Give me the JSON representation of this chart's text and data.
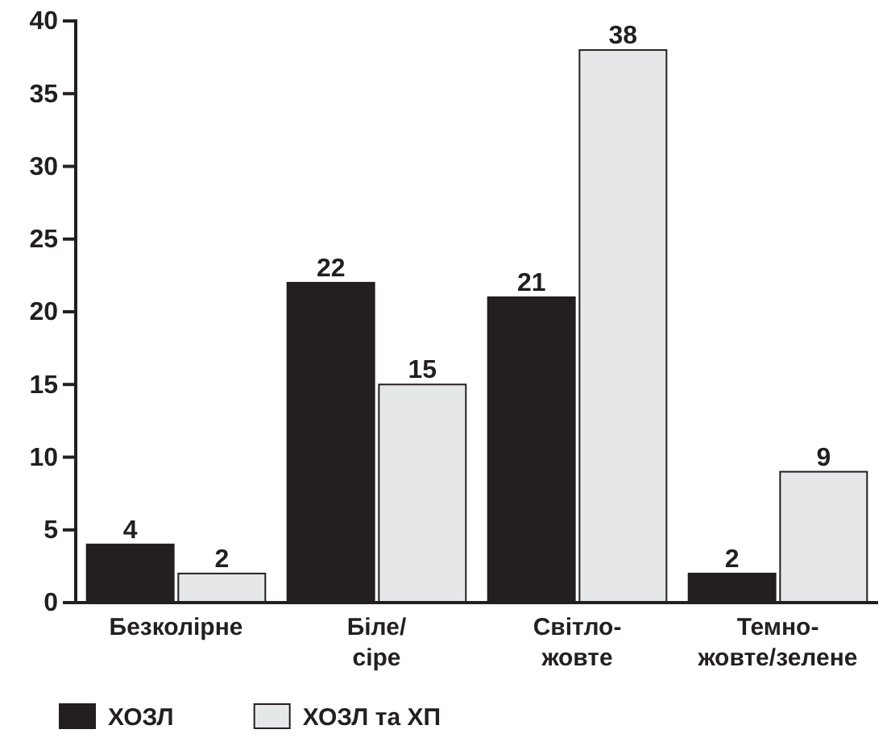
{
  "chart_data": {
    "type": "bar",
    "categories": [
      "Безколірне",
      "Біле/\nсіре",
      "Світло-\nжовте",
      "Темно-\nжовте/зелене"
    ],
    "series": [
      {
        "name": "ХОЗЛ",
        "color": "#231f20",
        "values": [
          4,
          22,
          21,
          2
        ]
      },
      {
        "name": "ХОЗЛ та ХП",
        "color": "#e6e7e8",
        "values": [
          2,
          15,
          38,
          9
        ]
      }
    ],
    "ylim": [
      0,
      40
    ],
    "yticks": [
      0,
      5,
      10,
      15,
      20,
      25,
      30,
      35,
      40
    ],
    "grid": false,
    "legend": "bottom left",
    "data_labels": true
  }
}
